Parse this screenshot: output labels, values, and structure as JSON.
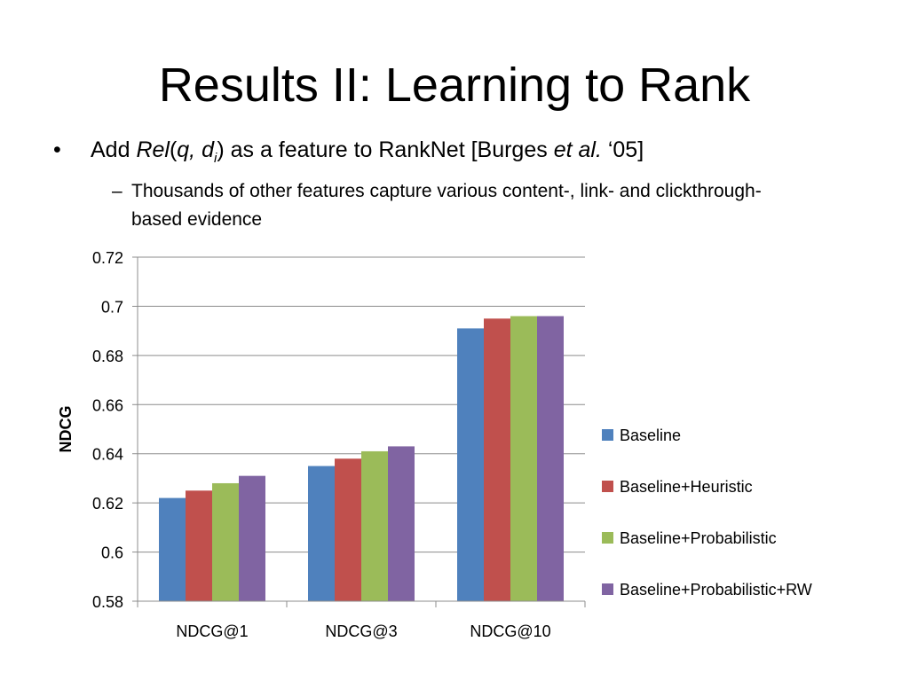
{
  "title": "Results II:  Learning to Rank",
  "bullets": {
    "main": {
      "marker": "•",
      "prefix": "Add ",
      "rel": "Rel",
      "open_paren": "(",
      "args": "q, d",
      "subscript": "i",
      "close_paren": ")",
      "middle": " as a feature to RankNet [Burges ",
      "etal": "et al.",
      "suffix": " ‘05]"
    },
    "sub": {
      "marker": "–",
      "text": "Thousands of other features capture various content-, link- and clickthrough-based evidence"
    }
  },
  "chart_data": {
    "type": "bar",
    "title": "",
    "xlabel": "",
    "ylabel": "NDCG",
    "ylim": [
      0.58,
      0.72
    ],
    "yticks": [
      "0.58",
      "0.6",
      "0.62",
      "0.64",
      "0.66",
      "0.68",
      "0.7",
      "0.72"
    ],
    "grid": true,
    "legend_position": "right",
    "categories": [
      "NDCG@1",
      "NDCG@3",
      "NDCG@10"
    ],
    "series": [
      {
        "name": "Baseline",
        "color": "#4f81bd",
        "values": [
          0.622,
          0.635,
          0.691
        ]
      },
      {
        "name": "Baseline+Heuristic",
        "color": "#c0504d",
        "values": [
          0.625,
          0.638,
          0.695
        ]
      },
      {
        "name": "Baseline+Probabilistic",
        "color": "#9bbb59",
        "values": [
          0.628,
          0.641,
          0.696
        ]
      },
      {
        "name": "Baseline+Probabilistic+RW",
        "color": "#8064a2",
        "values": [
          0.631,
          0.643,
          0.696
        ]
      }
    ]
  }
}
